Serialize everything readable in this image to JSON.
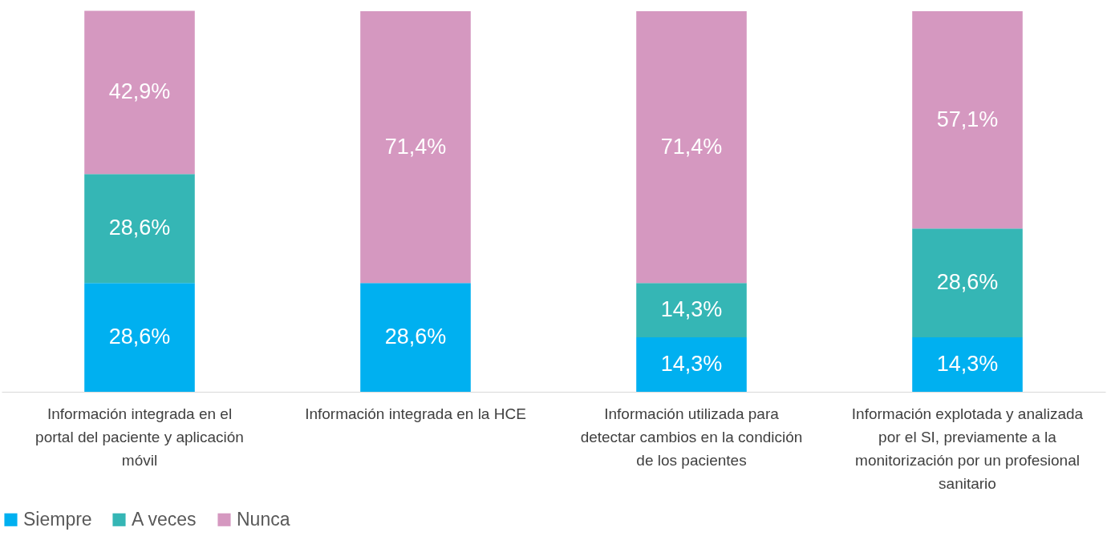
{
  "chart_data": {
    "type": "bar",
    "stacked": true,
    "categories": [
      "Información integrada en el portal del paciente y aplicación móvil",
      "Información integrada en la HCE",
      "Información  utilizada para detectar cambios en la condición de los pacientes",
      "Información explotada y analizada por el SI, previamente a la monitorización por un profesional sanitario"
    ],
    "series": [
      {
        "name": "Siempre",
        "color": "#00b0f0",
        "values": [
          28.6,
          28.6,
          14.3,
          14.3
        ],
        "value_labels": [
          "28,6%",
          "28,6%",
          "14,3%",
          "14,3%"
        ]
      },
      {
        "name": "A veces",
        "color": "#35b6b5",
        "values": [
          28.6,
          null,
          14.3,
          28.6
        ],
        "value_labels": [
          "28,6%",
          null,
          "14,3%",
          "28,6%"
        ]
      },
      {
        "name": "Nunca",
        "color": "#d598c0",
        "values": [
          42.9,
          71.4,
          71.4,
          57.1
        ],
        "value_labels": [
          "42,9%",
          "71,4%",
          "71,4%",
          "57,1%"
        ]
      }
    ],
    "ylim": [
      0,
      100
    ],
    "tick_labels": "x",
    "legend": "bottom"
  }
}
